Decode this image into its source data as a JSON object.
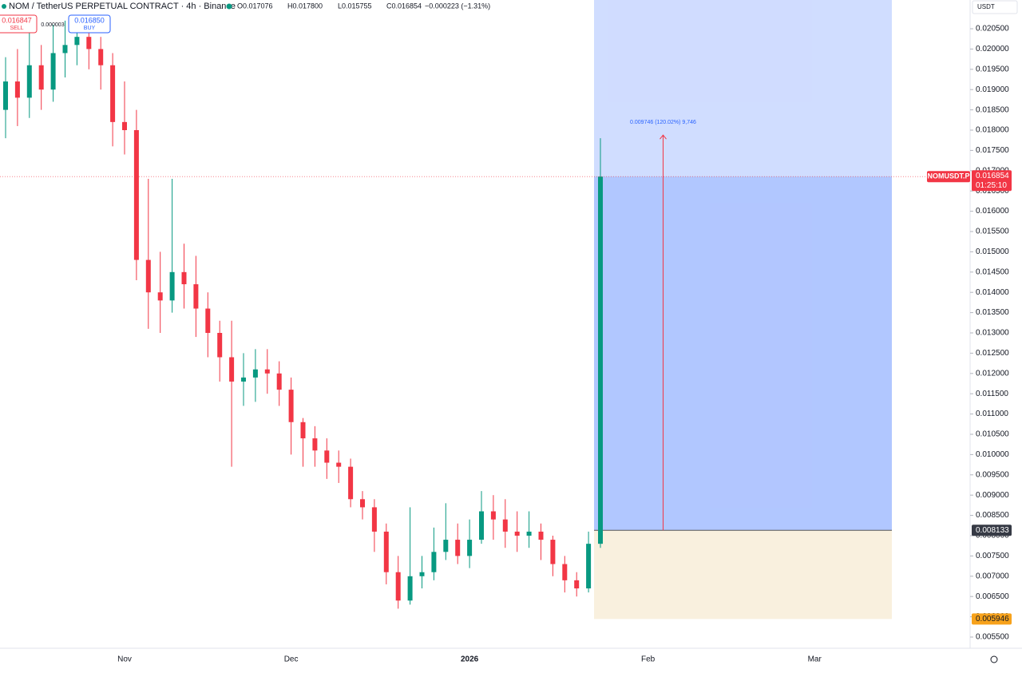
{
  "chart_data": {
    "type": "candlestick",
    "title": "NOM / TetherUS PERPETUAL CONTRACT · 4h · Binance",
    "ohlc_header": {
      "open": "O0.017076",
      "high": "H0.017800",
      "low": "L0.015755",
      "close": "C0.016854",
      "change": "−0.000223 (−1.31%)"
    },
    "sell": {
      "price": "0.016847",
      "label": "SELL"
    },
    "buy": {
      "price": "0.016850",
      "label": "BUY"
    },
    "spread": "0.000003",
    "currency": "USDT",
    "up_color": "#089981",
    "down_color": "#f23645",
    "categories": [
      null,
      null,
      null,
      null,
      null,
      null,
      null,
      null,
      null,
      null,
      "Nov",
      null,
      null,
      null,
      null,
      null,
      null,
      null,
      null,
      null,
      null,
      null,
      null,
      null,
      "Dec",
      null,
      null,
      null,
      null,
      null,
      null,
      null,
      null,
      null,
      null,
      null,
      null,
      null,
      null,
      "2026",
      null,
      null,
      null,
      null,
      null,
      null,
      null,
      null,
      null,
      null,
      null,
      null,
      null,
      null,
      "Feb",
      null,
      null,
      null,
      null,
      null,
      null,
      null,
      null,
      null,
      null,
      null,
      null,
      null,
      "Mar",
      null,
      null,
      null,
      null,
      null,
      null
    ],
    "open": [
      0.0185,
      0.0192,
      0.0188,
      0.0196,
      0.019,
      0.0199,
      0.0201,
      0.0203,
      0.02,
      0.0196,
      0.0182,
      0.018,
      0.0148,
      0.014,
      0.0138,
      0.0145,
      0.0142,
      0.0136,
      0.013,
      0.0124,
      0.0118,
      0.0119,
      0.0121,
      0.012,
      0.0116,
      0.0108,
      0.0104,
      0.0101,
      0.0098,
      0.0097,
      0.0089,
      0.0087,
      0.0081,
      0.0071,
      0.0064,
      0.007,
      0.0071,
      0.0076,
      0.0079,
      0.0075,
      0.0079,
      0.0086,
      0.0084,
      0.0081,
      0.008,
      0.0081,
      0.0079,
      0.0073,
      0.0069,
      0.0067,
      0.0078,
      null,
      null,
      null,
      null,
      null,
      null,
      null,
      null,
      null,
      null,
      null,
      null,
      null,
      null,
      null,
      null,
      null,
      null,
      null,
      null,
      null,
      null,
      null,
      null
    ],
    "high": [
      0.0198,
      0.02,
      0.0204,
      0.0201,
      0.0206,
      0.0207,
      0.0208,
      0.0206,
      0.0203,
      0.0199,
      0.0192,
      0.0185,
      0.0168,
      0.015,
      0.0168,
      0.0152,
      0.0149,
      0.014,
      0.0133,
      0.0133,
      0.0125,
      0.0126,
      0.0126,
      0.0123,
      0.0119,
      0.0109,
      0.0107,
      0.0104,
      0.0101,
      0.0099,
      0.0091,
      0.0089,
      0.0083,
      0.0075,
      0.0087,
      0.0075,
      0.0082,
      0.0088,
      0.0083,
      0.0084,
      0.0091,
      0.009,
      0.0089,
      0.0086,
      0.0086,
      0.0083,
      0.008,
      0.0075,
      0.0071,
      0.0081,
      0.0178,
      null,
      null,
      null,
      null,
      null,
      null,
      null,
      null,
      null,
      null,
      null,
      null,
      null,
      null,
      null,
      null,
      null,
      null,
      null,
      null,
      null,
      null,
      null,
      null
    ],
    "low": [
      0.0178,
      0.0181,
      0.0183,
      0.0185,
      0.0187,
      0.0193,
      0.0196,
      0.0195,
      0.019,
      0.0176,
      0.0174,
      0.0143,
      0.0131,
      0.013,
      0.0135,
      0.0136,
      0.0129,
      0.0124,
      0.0118,
      0.0097,
      0.0112,
      0.0113,
      0.0115,
      0.0112,
      0.01,
      0.0097,
      0.0097,
      0.0094,
      0.0093,
      0.0087,
      0.0084,
      0.0076,
      0.0068,
      0.0062,
      0.0063,
      0.0067,
      0.0069,
      0.0074,
      0.0073,
      0.0072,
      0.0078,
      0.0079,
      0.0077,
      0.0076,
      0.0077,
      0.0074,
      0.007,
      0.0066,
      0.0065,
      0.0066,
      0.0077,
      null,
      null,
      null,
      null,
      null,
      null,
      null,
      null,
      null,
      null,
      null,
      null,
      null,
      null,
      null,
      null,
      null,
      null,
      null,
      null,
      null,
      null,
      null,
      null
    ],
    "close": [
      0.0192,
      0.0188,
      0.0196,
      0.019,
      0.0199,
      0.0201,
      0.0203,
      0.02,
      0.0196,
      0.0182,
      0.018,
      0.0148,
      0.014,
      0.0138,
      0.0145,
      0.0142,
      0.0136,
      0.013,
      0.0124,
      0.0118,
      0.0119,
      0.0121,
      0.012,
      0.0116,
      0.0108,
      0.0104,
      0.0101,
      0.0098,
      0.0097,
      0.0089,
      0.0087,
      0.0081,
      0.0071,
      0.0064,
      0.007,
      0.0071,
      0.0076,
      0.0079,
      0.0075,
      0.0079,
      0.0086,
      0.0084,
      0.0081,
      0.008,
      0.0081,
      0.0079,
      0.0073,
      0.0069,
      0.0067,
      0.0078,
      0.016854,
      null,
      null,
      null,
      null,
      null,
      null,
      null,
      null,
      null,
      null,
      null,
      null,
      null,
      null,
      null,
      null,
      null,
      null,
      null,
      null,
      null,
      null,
      null,
      null
    ],
    "ylim": [
      0.005224,
      0.021209
    ],
    "yticks": [
      {
        "value": 0.0055,
        "label": "0.005500"
      },
      {
        "value": 0.006,
        "label": "0.006000"
      },
      {
        "value": 0.0065,
        "label": "0.006500"
      },
      {
        "value": 0.007,
        "label": "0.007000"
      },
      {
        "value": 0.0075,
        "label": "0.007500"
      },
      {
        "value": 0.008,
        "label": "0.008000"
      },
      {
        "value": 0.0085,
        "label": "0.008500"
      },
      {
        "value": 0.009,
        "label": "0.009000"
      },
      {
        "value": 0.0095,
        "label": "0.009500"
      },
      {
        "value": 0.01,
        "label": "0.010000"
      },
      {
        "value": 0.0105,
        "label": "0.010500"
      },
      {
        "value": 0.011,
        "label": "0.011000"
      },
      {
        "value": 0.0115,
        "label": "0.011500"
      },
      {
        "value": 0.012,
        "label": "0.012000"
      },
      {
        "value": 0.0125,
        "label": "0.012500"
      },
      {
        "value": 0.013,
        "label": "0.013000"
      },
      {
        "value": 0.0135,
        "label": "0.013500"
      },
      {
        "value": 0.014,
        "label": "0.014000"
      },
      {
        "value": 0.0145,
        "label": "0.014500"
      },
      {
        "value": 0.015,
        "label": "0.015000"
      },
      {
        "value": 0.0155,
        "label": "0.015500"
      },
      {
        "value": 0.016,
        "label": "0.016000"
      },
      {
        "value": 0.0165,
        "label": "0.016500"
      },
      {
        "value": 0.017,
        "label": "0.017000"
      },
      {
        "value": 0.0175,
        "label": "0.017500"
      },
      {
        "value": 0.018,
        "label": "0.018000"
      },
      {
        "value": 0.0185,
        "label": "0.018500"
      },
      {
        "value": 0.019,
        "label": "0.019000"
      },
      {
        "value": 0.0195,
        "label": "0.019500"
      },
      {
        "value": 0.02,
        "label": "0.020000"
      },
      {
        "value": 0.0205,
        "label": "0.020500"
      }
    ],
    "last_price": {
      "symbol": "NOMUSDT.P",
      "value": 0.016854,
      "label": "0.016854",
      "countdown": "01:25:10"
    },
    "position": {
      "entry": 0.008133,
      "entry_label": "0.008133",
      "stop": 0.005946,
      "stop_label": "0.005946",
      "measure": {
        "value": 0.009746,
        "label": "0.009746 (120.02%) 9,746"
      }
    }
  }
}
